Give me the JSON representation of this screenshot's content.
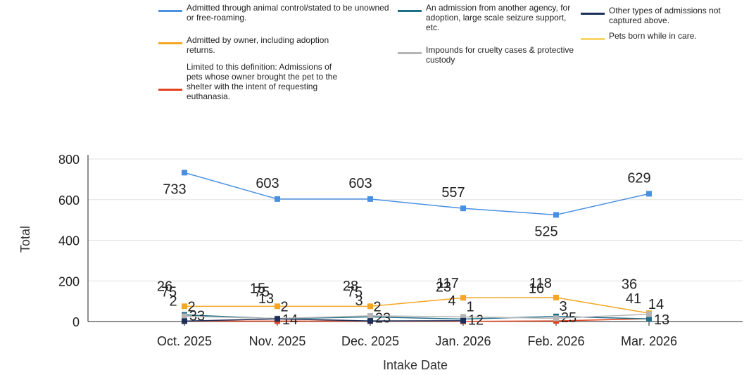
{
  "chart_data": {
    "type": "line",
    "x_label": "Intake Date",
    "y_label": "Total",
    "categories": [
      "Oct. 2025",
      "Nov. 2025",
      "Dec. 2025",
      "Jan. 2026",
      "Feb. 2026",
      "Mar. 2026"
    ],
    "series": [
      {
        "name": "Admitted through animal control/stated to be unowned or free-roaming.",
        "color": "#4a90e2",
        "values": [
          733,
          603,
          603,
          557,
          525,
          629
        ]
      },
      {
        "name": "Admitted by owner, including adoption returns.",
        "color": "#f5a623",
        "values": [
          75,
          75,
          75,
          117,
          118,
          41
        ]
      },
      {
        "name": "Limited to this definition: Admissions of pets whose owner brought the pet to the shelter with the intent of requesting euthanasia.",
        "color": "#e2431e",
        "values": [
          2,
          2,
          2,
          1,
          3,
          14
        ]
      },
      {
        "name": "An admission from another agency, for adoption, large scale seizure support, etc.",
        "color": "#1f6f8b",
        "values": [
          33,
          14,
          23,
          12,
          25,
          13
        ]
      },
      {
        "name": "Impounds for cruelty cases & protective custody",
        "color": "#b5b5b5",
        "values": [
          26,
          15,
          28,
          23,
          16,
          36
        ]
      },
      {
        "name": "Other types of admissions not captured above.",
        "color": "#1c2f5a",
        "values": [
          2,
          13,
          3,
          4,
          null,
          null
        ]
      },
      {
        "name": "Pets born while in care.",
        "color": "#f8d568",
        "values": [
          null,
          null,
          null,
          null,
          null,
          null
        ]
      }
    ],
    "ylim": [
      0,
      800
    ],
    "yticks": [
      0,
      200,
      400,
      600,
      800
    ],
    "grid": true
  }
}
